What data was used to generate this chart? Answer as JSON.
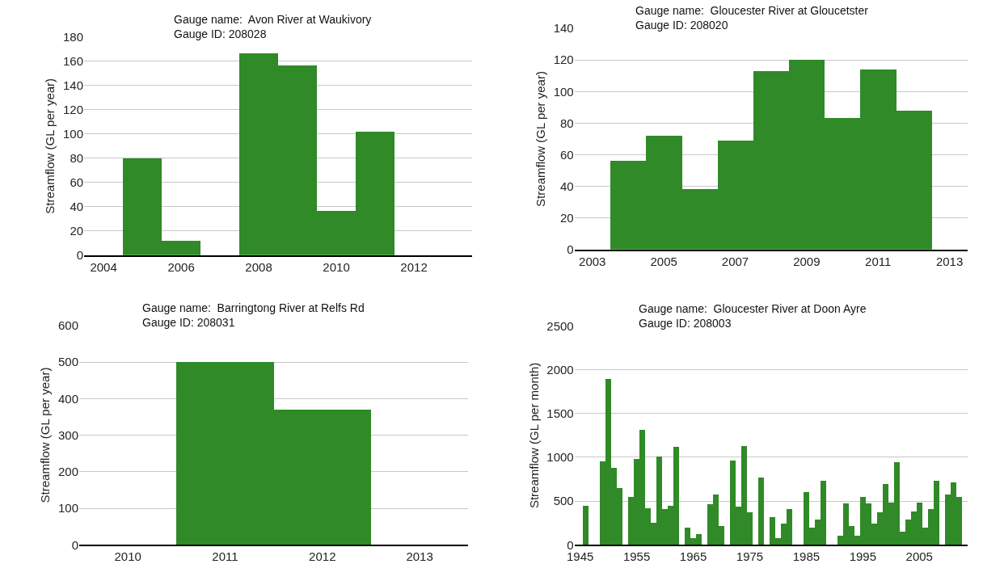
{
  "chart_data": [
    {
      "type": "bar",
      "annotations": [
        "Gauge name:  Avon River at Waukivory",
        "Gauge ID: 208028"
      ],
      "ylabel": "Streamflow (GL per year)",
      "x": [
        2005,
        2006,
        2007,
        2008,
        2009,
        2010,
        2011
      ],
      "values": [
        80,
        12,
        null,
        167,
        157,
        37,
        102
      ],
      "color": "#2f8a27",
      "xlim": [
        2003.5,
        2013.5
      ],
      "xticks": [
        2004,
        2006,
        2008,
        2010,
        2012
      ],
      "ylim": [
        0,
        180
      ],
      "yticks": [
        0,
        20,
        40,
        60,
        80,
        100,
        120,
        140,
        160,
        180
      ],
      "grid": "y"
    },
    {
      "type": "bar",
      "annotations": [
        "Gauge name:  Gloucester River at Gloucetster",
        "Gauge ID: 208020"
      ],
      "ylabel": "Streamflow (GL per year)",
      "x": [
        2004,
        2005,
        2006,
        2007,
        2008,
        2009,
        2010,
        2011,
        2012
      ],
      "values": [
        56,
        72,
        38,
        69,
        113,
        120,
        83,
        114,
        88
      ],
      "color": "#2f8a27",
      "xlim": [
        2002.5,
        2013.5
      ],
      "xticks": [
        2003,
        2005,
        2007,
        2009,
        2011,
        2013
      ],
      "ylim": [
        0,
        140
      ],
      "yticks": [
        0,
        20,
        40,
        60,
        80,
        100,
        120,
        140
      ],
      "grid": "y"
    },
    {
      "type": "bar",
      "annotations": [
        "Gauge name:  Barringtong River at Relfs Rd",
        "Gauge ID: 208031"
      ],
      "ylabel": "Streamflow (GL per year)",
      "x": [
        2011,
        2012
      ],
      "values": [
        500,
        370
      ],
      "color": "#2f8a27",
      "xlim": [
        2009.5,
        2013.5
      ],
      "xticks": [
        2010,
        2011,
        2012,
        2013
      ],
      "ylim": [
        0,
        600
      ],
      "yticks": [
        0,
        100,
        200,
        300,
        400,
        500,
        600
      ],
      "grid": "y"
    },
    {
      "type": "bar",
      "annotations": [
        "Gauge name:  Gloucester River at Doon Ayre",
        "Gauge ID: 208003"
      ],
      "ylabel": "Streamflow (GL per month)",
      "x": [
        1946,
        1947,
        1948,
        1949,
        1950,
        1951,
        1952,
        1953,
        1954,
        1955,
        1956,
        1957,
        1958,
        1959,
        1960,
        1961,
        1962,
        1963,
        1964,
        1965,
        1966,
        1967,
        1968,
        1969,
        1970,
        1971,
        1972,
        1973,
        1974,
        1975,
        1976,
        1977,
        1978,
        1979,
        1980,
        1981,
        1982,
        1983,
        1984,
        1985,
        1986,
        1987,
        1988,
        1989,
        1990,
        1991,
        1992,
        1993,
        1994,
        1995,
        1996,
        1997,
        1998,
        1999,
        2000,
        2001,
        2002,
        2003,
        2004,
        2005,
        2006,
        2007,
        2008,
        2009,
        2010,
        2011,
        2012
      ],
      "values": [
        450,
        null,
        null,
        955,
        1900,
        885,
        650,
        null,
        550,
        990,
        1320,
        420,
        260,
        1010,
        410,
        450,
        1120,
        null,
        200,
        85,
        130,
        null,
        470,
        580,
        220,
        null,
        970,
        440,
        1130,
        380,
        null,
        770,
        null,
        320,
        85,
        250,
        410,
        null,
        null,
        610,
        200,
        290,
        740,
        null,
        null,
        105,
        480,
        220,
        105,
        550,
        480,
        245,
        380,
        700,
        490,
        950,
        155,
        290,
        390,
        490,
        200,
        410,
        740,
        null,
        580,
        720,
        550
      ],
      "color": "#2f8a27",
      "xlim": [
        1944,
        2013.5
      ],
      "xticks": [
        1945,
        1955,
        1965,
        1975,
        1985,
        1995,
        2005
      ],
      "ylim": [
        0,
        2500
      ],
      "yticks": [
        0,
        500,
        1000,
        1500,
        2000,
        2500
      ],
      "grid": "y"
    }
  ]
}
